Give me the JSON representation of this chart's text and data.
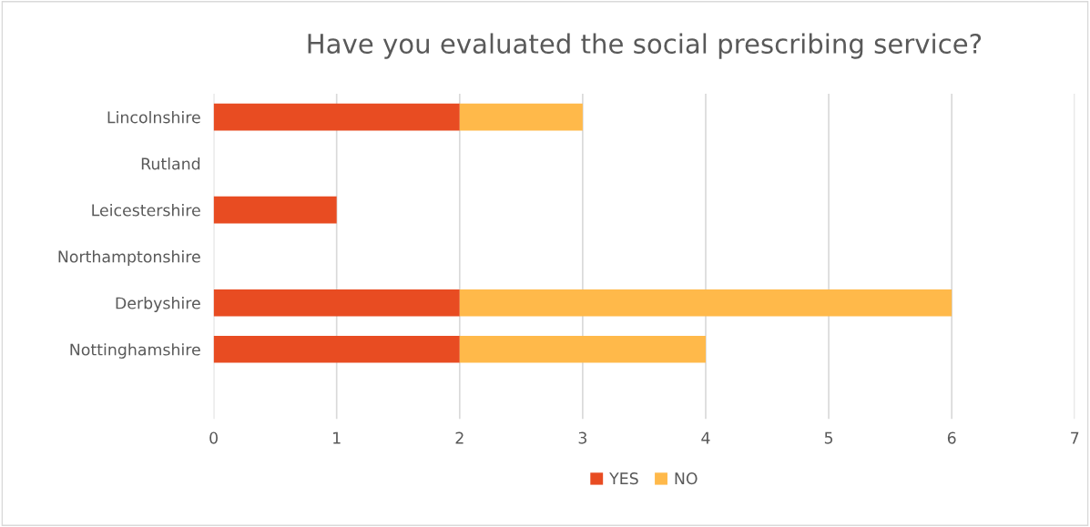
{
  "chart_data": {
    "type": "bar",
    "orientation": "horizontal",
    "stacked": true,
    "title": "Have you evaluated the social prescribing service?",
    "categories": [
      "Lincolnshire",
      "Rutland",
      "Leicestershire",
      "Northamptonshire",
      "Derbyshire",
      "Nottinghamshire",
      null
    ],
    "series": [
      {
        "name": "YES",
        "color": "#e84c22",
        "values": [
          2,
          0,
          1,
          0,
          2,
          2,
          null
        ]
      },
      {
        "name": "NO",
        "color": "#ffb94a",
        "values": [
          1,
          0,
          0,
          0,
          4,
          2,
          null
        ]
      }
    ],
    "xlim": [
      0,
      7
    ],
    "xticks": [
      0,
      1,
      2,
      3,
      4,
      5,
      6,
      7
    ],
    "grid": "x",
    "legend": "bottom"
  }
}
